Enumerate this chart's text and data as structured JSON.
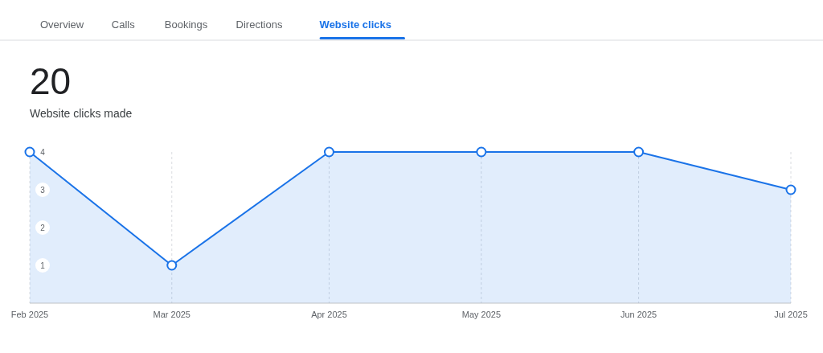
{
  "chart_data": {
    "type": "area",
    "title": "20",
    "subtitle": "Website clicks made",
    "annotations": [
      "Overview",
      "Calls",
      "Bookings",
      "Directions",
      "Website clicks"
    ],
    "x": [
      "2025-02",
      "2025-03",
      "2025-04",
      "2025-05",
      "2025-06",
      "2025-07"
    ],
    "series": [
      {
        "color": "#1a73e8",
        "values": [
          4,
          1,
          4,
          4,
          4,
          3
        ]
      }
    ],
    "xlim": [
      "2025-02",
      "2025-07"
    ],
    "xticks": [
      {
        "value": "2025-02",
        "label": "Feb 2025"
      },
      {
        "value": "2025-03",
        "label": "Mar 2025"
      },
      {
        "value": "2025-04",
        "label": "Apr 2025"
      },
      {
        "value": "2025-05",
        "label": "May 2025"
      },
      {
        "value": "2025-06",
        "label": "Jun 2025"
      },
      {
        "value": "2025-07",
        "label": "Jul 2025"
      }
    ],
    "ylim": [
      0,
      4
    ],
    "yticks": [
      1,
      2,
      3,
      4
    ],
    "grid": "x",
    "marker": "circle"
  }
}
